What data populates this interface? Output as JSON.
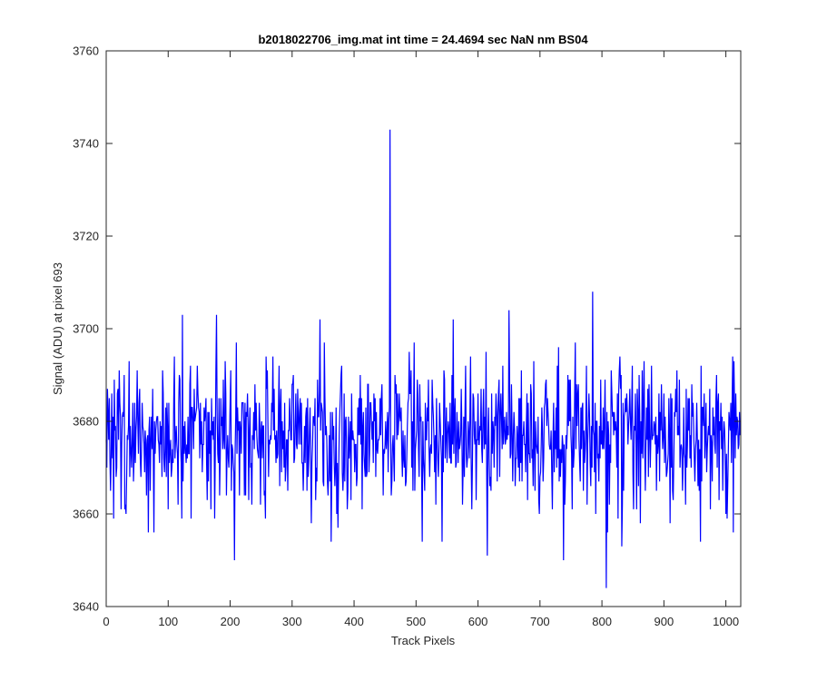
{
  "chart_data": {
    "type": "line",
    "title": "b2018022706_img.mat int time = 24.4694 sec  NaN nm BS04",
    "xlabel": "Track Pixels",
    "ylabel": "Signal (ADU) at pixel 693",
    "xlim": [
      0,
      1024
    ],
    "ylim": [
      3640,
      3760
    ],
    "xticks": [
      0,
      100,
      200,
      300,
      400,
      500,
      600,
      700,
      800,
      900,
      1000
    ],
    "yticks": [
      3640,
      3660,
      3680,
      3700,
      3720,
      3740,
      3760
    ],
    "xtick_labels": [
      "0",
      "100",
      "200",
      "300",
      "400",
      "500",
      "600",
      "700",
      "800",
      "900",
      "1000"
    ],
    "ytick_labels": [
      "3640",
      "3660",
      "3680",
      "3700",
      "3720",
      "3740",
      "3760"
    ],
    "grid": false,
    "series": [
      {
        "color": "#0000ff",
        "noise": {
          "n_points": 1024,
          "mean": 3677,
          "std": 7
        },
        "points": [
          [
            0,
            3676
          ],
          [
            3,
            3682
          ],
          [
            7,
            3665
          ],
          [
            10,
            3672
          ],
          [
            13,
            3689
          ],
          [
            16,
            3668
          ],
          [
            18,
            3686
          ],
          [
            24,
            3661
          ],
          [
            30,
            3661
          ],
          [
            35,
            3676
          ],
          [
            37,
            3693
          ],
          [
            45,
            3672
          ],
          [
            50,
            3691
          ],
          [
            68,
            3656
          ],
          [
            75,
            3687
          ],
          [
            77,
            3656
          ],
          [
            92,
            3686
          ],
          [
            100,
            3661
          ],
          [
            110,
            3694
          ],
          [
            116,
            3662
          ],
          [
            123,
            3703
          ],
          [
            137,
            3659
          ],
          [
            148,
            3686
          ],
          [
            157,
            3675
          ],
          [
            163,
            3663
          ],
          [
            172,
            3680
          ],
          [
            178,
            3703
          ],
          [
            188,
            3674
          ],
          [
            200,
            3684
          ],
          [
            207,
            3650
          ],
          [
            220,
            3684
          ],
          [
            230,
            3663
          ],
          [
            240,
            3688
          ],
          [
            255,
            3664
          ],
          [
            260,
            3691
          ],
          [
            275,
            3678
          ],
          [
            282,
            3687
          ],
          [
            293,
            3665
          ],
          [
            300,
            3688
          ],
          [
            318,
            3665
          ],
          [
            325,
            3685
          ],
          [
            331,
            3658
          ],
          [
            337,
            3685
          ],
          [
            345,
            3702
          ],
          [
            351,
            3666
          ],
          [
            363,
            3654
          ],
          [
            380,
            3692
          ],
          [
            395,
            3663
          ],
          [
            410,
            3690
          ],
          [
            420,
            3668
          ],
          [
            435,
            3668
          ],
          [
            447,
            3664
          ],
          [
            455,
            3669
          ],
          [
            458,
            3743
          ],
          [
            460,
            3664
          ],
          [
            470,
            3686
          ],
          [
            480,
            3672
          ],
          [
            492,
            3691
          ],
          [
            505,
            3668
          ],
          [
            510,
            3654
          ],
          [
            520,
            3689
          ],
          [
            530,
            3669
          ],
          [
            545,
            3691
          ],
          [
            560,
            3702
          ],
          [
            575,
            3662
          ],
          [
            590,
            3661
          ],
          [
            605,
            3687
          ],
          [
            615,
            3651
          ],
          [
            622,
            3686
          ],
          [
            635,
            3668
          ],
          [
            640,
            3692
          ],
          [
            650,
            3704
          ],
          [
            660,
            3666
          ],
          [
            670,
            3691
          ],
          [
            680,
            3663
          ],
          [
            690,
            3693
          ],
          [
            700,
            3668
          ],
          [
            710,
            3689
          ],
          [
            720,
            3661
          ],
          [
            730,
            3696
          ],
          [
            738,
            3650
          ],
          [
            745,
            3690
          ],
          [
            752,
            3661
          ],
          [
            765,
            3667
          ],
          [
            775,
            3692
          ],
          [
            785,
            3708
          ],
          [
            790,
            3660
          ],
          [
            798,
            3689
          ],
          [
            807,
            3644
          ],
          [
            815,
            3691
          ],
          [
            825,
            3686
          ],
          [
            832,
            3653
          ],
          [
            840,
            3686
          ],
          [
            850,
            3669
          ],
          [
            860,
            3690
          ],
          [
            870,
            3665
          ],
          [
            880,
            3692
          ],
          [
            890,
            3673
          ],
          [
            900,
            3686
          ],
          [
            915,
            3663
          ],
          [
            925,
            3689
          ],
          [
            935,
            3662
          ],
          [
            945,
            3688
          ],
          [
            955,
            3666
          ],
          [
            965,
            3686
          ],
          [
            975,
            3661
          ],
          [
            985,
            3690
          ],
          [
            995,
            3665
          ],
          [
            1002,
            3659
          ],
          [
            1008,
            3684
          ],
          [
            1012,
            3656
          ],
          [
            1016,
            3686
          ],
          [
            1020,
            3674
          ],
          [
            1023,
            3677
          ]
        ]
      }
    ]
  }
}
